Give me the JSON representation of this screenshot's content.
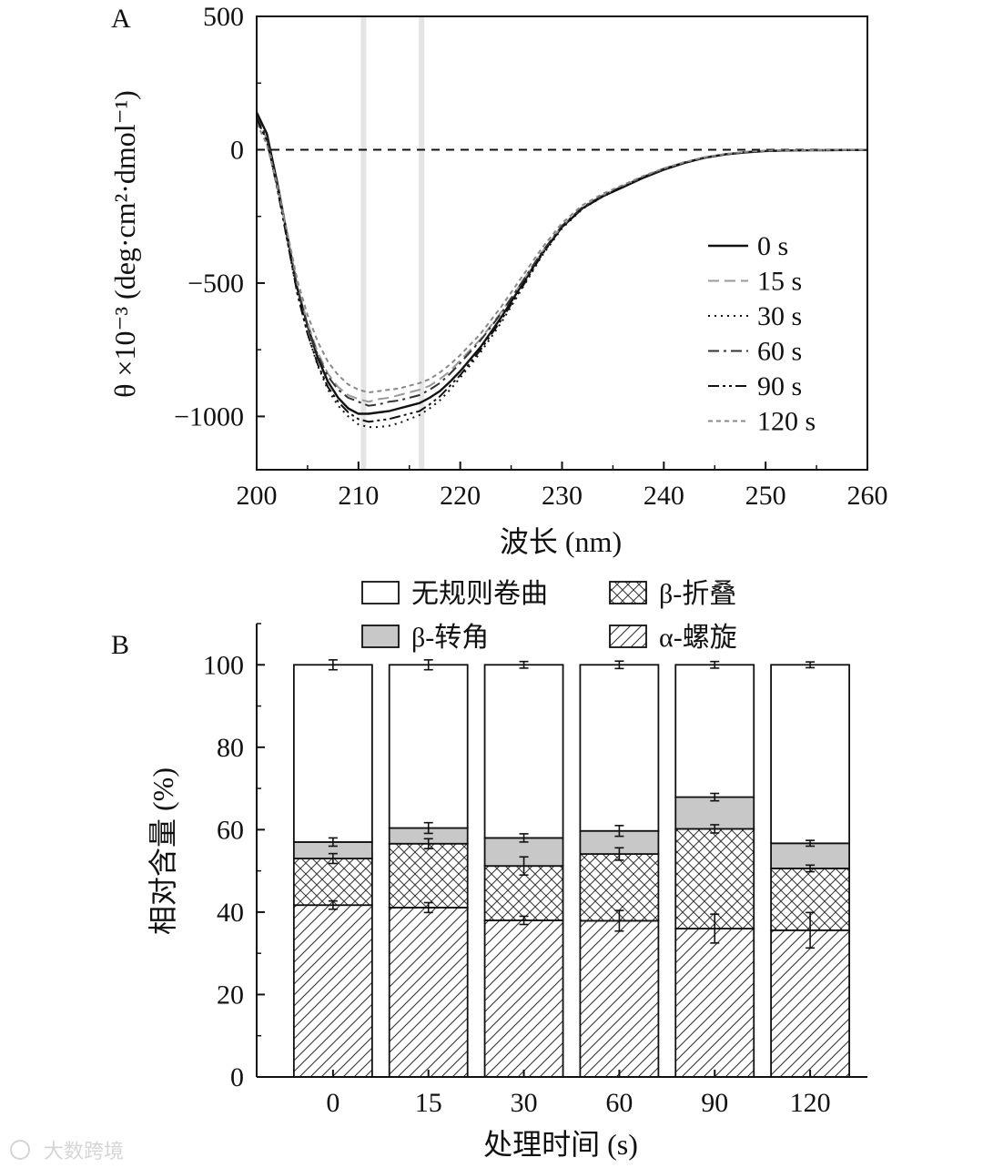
{
  "chart_data": [
    {
      "type": "line",
      "panel_label": "A",
      "xlabel": "波长 (nm)",
      "ylabel": "θ ×10⁻³ (deg·cm²·dmol⁻¹)",
      "xlim": [
        200,
        260
      ],
      "ylim": [
        -1200,
        500
      ],
      "xticks": [
        "200",
        "210",
        "220",
        "230",
        "240",
        "250",
        "260"
      ],
      "yticks": [
        "500",
        "0",
        "−500",
        "−1000"
      ],
      "highlight_bands_nm": [
        210.5,
        216.2
      ],
      "series": [
        {
          "name": "0 s",
          "style": "solid",
          "color": "#111111",
          "x": [
            200,
            201,
            202,
            203,
            204,
            205,
            206,
            207,
            208,
            209,
            210,
            211,
            212,
            213,
            214,
            215,
            216,
            217,
            218,
            219,
            220,
            222,
            224,
            226,
            228,
            230,
            232,
            234,
            236,
            238,
            240,
            242,
            244,
            246,
            248,
            250,
            252,
            254,
            256,
            258,
            260
          ],
          "y": [
            140,
            60,
            -120,
            -320,
            -520,
            -660,
            -780,
            -870,
            -930,
            -970,
            -990,
            -990,
            -985,
            -980,
            -970,
            -960,
            -950,
            -930,
            -905,
            -870,
            -830,
            -740,
            -630,
            -510,
            -390,
            -290,
            -220,
            -175,
            -140,
            -105,
            -75,
            -50,
            -30,
            -18,
            -10,
            -5,
            -3,
            -2,
            -2,
            -1,
            -1
          ]
        },
        {
          "name": "15 s",
          "style": "dashed",
          "color": "#999999",
          "x": [
            200,
            201,
            202,
            203,
            204,
            205,
            206,
            207,
            208,
            209,
            210,
            211,
            212,
            213,
            214,
            215,
            216,
            217,
            218,
            219,
            220,
            222,
            224,
            226,
            228,
            230,
            232,
            234,
            236,
            238,
            240,
            242,
            244,
            246,
            248,
            250,
            252,
            254,
            256,
            258,
            260
          ],
          "y": [
            120,
            40,
            -130,
            -320,
            -510,
            -650,
            -760,
            -840,
            -890,
            -920,
            -935,
            -945,
            -935,
            -930,
            -920,
            -910,
            -900,
            -885,
            -860,
            -830,
            -790,
            -710,
            -610,
            -500,
            -385,
            -285,
            -215,
            -170,
            -135,
            -100,
            -70,
            -48,
            -28,
            -16,
            -8,
            -4,
            -2,
            -2,
            -1,
            -1,
            -1
          ]
        },
        {
          "name": "30 s",
          "style": "dotted",
          "color": "#111111",
          "x": [
            200,
            201,
            202,
            203,
            204,
            205,
            206,
            207,
            208,
            209,
            210,
            211,
            212,
            213,
            214,
            215,
            216,
            217,
            218,
            219,
            220,
            222,
            224,
            226,
            228,
            230,
            232,
            234,
            236,
            238,
            240,
            242,
            244,
            246,
            248,
            250,
            252,
            254,
            256,
            258,
            260
          ],
          "y": [
            110,
            30,
            -140,
            -340,
            -540,
            -690,
            -810,
            -900,
            -960,
            -1000,
            -1030,
            -1040,
            -1040,
            -1035,
            -1025,
            -1010,
            -995,
            -970,
            -940,
            -900,
            -855,
            -760,
            -650,
            -525,
            -400,
            -295,
            -222,
            -176,
            -140,
            -104,
            -73,
            -49,
            -29,
            -17,
            -9,
            -5,
            -3,
            -2,
            -1,
            -1,
            -1
          ]
        },
        {
          "name": "60 s",
          "style": "dashdot",
          "color": "#333333",
          "x": [
            200,
            201,
            202,
            203,
            204,
            205,
            206,
            207,
            208,
            209,
            210,
            211,
            212,
            213,
            214,
            215,
            216,
            217,
            218,
            219,
            220,
            222,
            224,
            226,
            228,
            230,
            232,
            234,
            236,
            238,
            240,
            242,
            244,
            246,
            248,
            250,
            252,
            254,
            256,
            258,
            260
          ],
          "y": [
            125,
            45,
            -130,
            -330,
            -520,
            -660,
            -770,
            -850,
            -900,
            -930,
            -945,
            -960,
            -955,
            -945,
            -940,
            -930,
            -920,
            -900,
            -875,
            -840,
            -800,
            -715,
            -615,
            -500,
            -385,
            -285,
            -216,
            -172,
            -137,
            -102,
            -72,
            -48,
            -29,
            -17,
            -9,
            -5,
            -3,
            -2,
            -1,
            -1,
            -1
          ]
        },
        {
          "name": "90 s",
          "style": "dashdotdot",
          "color": "#111111",
          "x": [
            200,
            201,
            202,
            203,
            204,
            205,
            206,
            207,
            208,
            209,
            210,
            211,
            212,
            213,
            214,
            215,
            216,
            217,
            218,
            219,
            220,
            222,
            224,
            226,
            228,
            230,
            232,
            234,
            236,
            238,
            240,
            242,
            244,
            246,
            248,
            250,
            252,
            254,
            256,
            258,
            260
          ],
          "y": [
            115,
            35,
            -140,
            -340,
            -540,
            -690,
            -805,
            -890,
            -945,
            -985,
            -1010,
            -1020,
            -1015,
            -1010,
            -1000,
            -990,
            -980,
            -955,
            -925,
            -885,
            -845,
            -750,
            -640,
            -520,
            -395,
            -290,
            -220,
            -175,
            -138,
            -103,
            -73,
            -49,
            -29,
            -17,
            -9,
            -5,
            -3,
            -2,
            -1,
            -1,
            -1
          ]
        },
        {
          "name": "120 s",
          "style": "shortdash",
          "color": "#888888",
          "x": [
            200,
            201,
            202,
            203,
            204,
            205,
            206,
            207,
            208,
            209,
            210,
            211,
            212,
            213,
            214,
            215,
            216,
            217,
            218,
            219,
            220,
            222,
            224,
            226,
            228,
            230,
            232,
            234,
            236,
            238,
            240,
            242,
            244,
            246,
            248,
            250,
            252,
            254,
            256,
            258,
            260
          ],
          "y": [
            100,
            20,
            -130,
            -310,
            -490,
            -620,
            -720,
            -795,
            -845,
            -880,
            -900,
            -910,
            -905,
            -900,
            -895,
            -885,
            -875,
            -860,
            -835,
            -805,
            -770,
            -690,
            -590,
            -480,
            -370,
            -275,
            -208,
            -165,
            -132,
            -98,
            -70,
            -47,
            -28,
            -16,
            -8,
            -4,
            -2,
            -2,
            -1,
            -1,
            -1
          ]
        }
      ]
    },
    {
      "type": "bar",
      "stacked": true,
      "panel_label": "B",
      "xlabel": "处理时间 (s)",
      "ylabel": "相对含量 (%)",
      "ylim": [
        0,
        110
      ],
      "yticks": [
        "0",
        "20",
        "40",
        "60",
        "80",
        "100"
      ],
      "categories": [
        "0",
        "15",
        "30",
        "60",
        "90",
        "120"
      ],
      "legend": [
        {
          "label": "无规则卷曲",
          "pattern": "white"
        },
        {
          "label": "β-折叠",
          "pattern": "crosshatch"
        },
        {
          "label": "β-转角",
          "pattern": "gray"
        },
        {
          "label": "α-螺旋",
          "pattern": "diagonal"
        }
      ],
      "series": [
        {
          "name": "α-螺旋",
          "pattern": "diagonal",
          "values": [
            41.7,
            41.1,
            38.0,
            37.9,
            36.0,
            35.6
          ],
          "errors": [
            1.0,
            1.2,
            1.0,
            2.5,
            3.5,
            4.3
          ]
        },
        {
          "name": "β-折叠",
          "pattern": "crosshatch",
          "values": [
            11.3,
            15.5,
            13.2,
            16.2,
            24.2,
            15.0
          ],
          "errors": [
            1.2,
            1.2,
            2.2,
            1.5,
            1.0,
            0.8
          ]
        },
        {
          "name": "β-转角",
          "pattern": "gray",
          "values": [
            4.0,
            3.8,
            6.8,
            5.6,
            7.7,
            6.1
          ],
          "errors": [
            1.0,
            1.3,
            1.0,
            1.3,
            0.9,
            0.7
          ]
        },
        {
          "name": "无规则卷曲",
          "pattern": "white",
          "values": [
            43.0,
            39.6,
            42.0,
            40.3,
            32.1,
            43.3
          ],
          "errors": [
            1.2,
            1.2,
            0.8,
            0.9,
            0.8,
            0.7
          ]
        }
      ]
    }
  ],
  "watermark": "大数跨境"
}
